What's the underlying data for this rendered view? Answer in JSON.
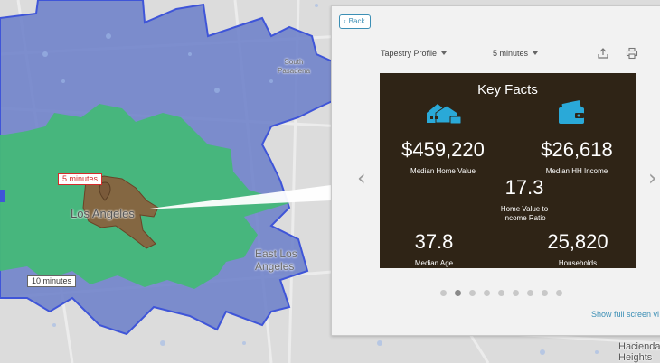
{
  "map": {
    "labels": {
      "south_pasadena": "South Pasadena",
      "los_angeles": "Los Angeles",
      "east_los_angeles": "East Los Angeles",
      "hacienda_heights": "Hacienda Heights"
    },
    "drive_time_tags": {
      "five": "5 minutes",
      "ten": "10 minutes"
    },
    "colors": {
      "ten_min_area": "#6a7ec9",
      "ten_min_outline": "#3f55d8",
      "five_min_area": "#45b878",
      "core_area": "#8b5e3c",
      "background": "#dcdcdc"
    }
  },
  "panel": {
    "back_label": "Back",
    "profile_dropdown": "Tapestry Profile",
    "time_dropdown": "5 minutes",
    "share_icon": "share-icon",
    "print_icon": "print-icon",
    "card": {
      "title": "Key Facts",
      "home_value": "$459,220",
      "home_value_label": "Median Home Value",
      "hh_income": "$26,618",
      "hh_income_label": "Median HH Income",
      "ratio": "17.3",
      "ratio_label_line1": "Home Value to",
      "ratio_label_line2": "Income Ratio",
      "median_age": "37.8",
      "median_age_label": "Median Age",
      "households": "25,820",
      "households_label": "Households",
      "accent_color": "#2aa9d8",
      "background_color": "#2f2416"
    },
    "pager": {
      "total": 9,
      "active": 2
    },
    "full_screen_link": "Show full screen vi"
  }
}
